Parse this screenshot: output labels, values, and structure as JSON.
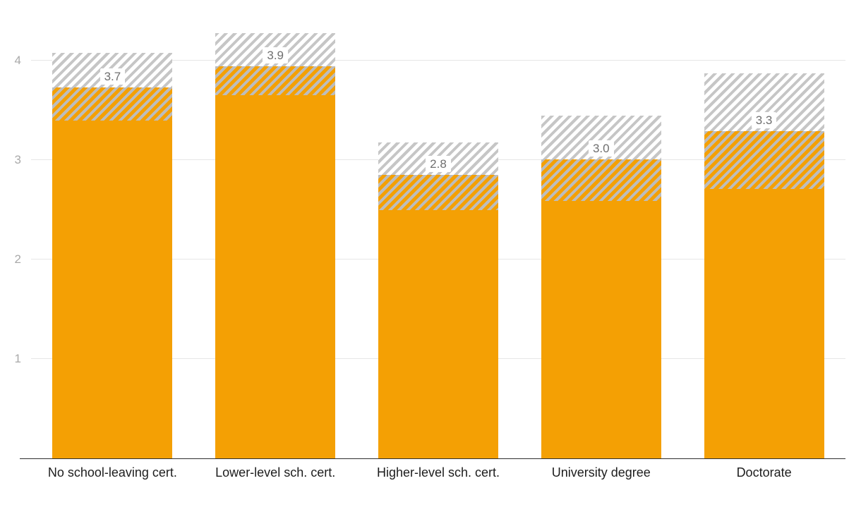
{
  "chart_data": {
    "type": "bar",
    "title": "",
    "categories": [
      "No school-leaving cert.",
      "Lower-level sch. cert.",
      "Higher-level sch. cert.",
      "University degree",
      "Doctorate"
    ],
    "series": [
      {
        "name": "estimate",
        "values": [
          3.73,
          3.94,
          2.85,
          3.01,
          3.29
        ]
      },
      {
        "name": "ci_low",
        "values": [
          3.4,
          3.65,
          2.5,
          2.59,
          2.71
        ]
      },
      {
        "name": "ci_high",
        "values": [
          4.08,
          4.28,
          3.18,
          3.45,
          3.87
        ]
      }
    ],
    "value_labels": [
      "3.7",
      "3.9",
      "2.8",
      "3.0",
      "3.3"
    ],
    "y_ticks": [
      1,
      2,
      3,
      4
    ],
    "ylim": [
      0,
      4.5
    ],
    "grid": true,
    "legend": "none",
    "hatch_meaning": "confidence-interval",
    "colors": {
      "bar": "#F4A004",
      "hatch_stripe": "#C6C6C6",
      "gridline": "#E6E6E6",
      "axis_line": "#2F2F2F",
      "tick_label": "#A9A9A9",
      "category_label": "#1D1D1D",
      "value_label": "#6F6F6F",
      "value_label_bg": "#FFFFFF"
    }
  }
}
